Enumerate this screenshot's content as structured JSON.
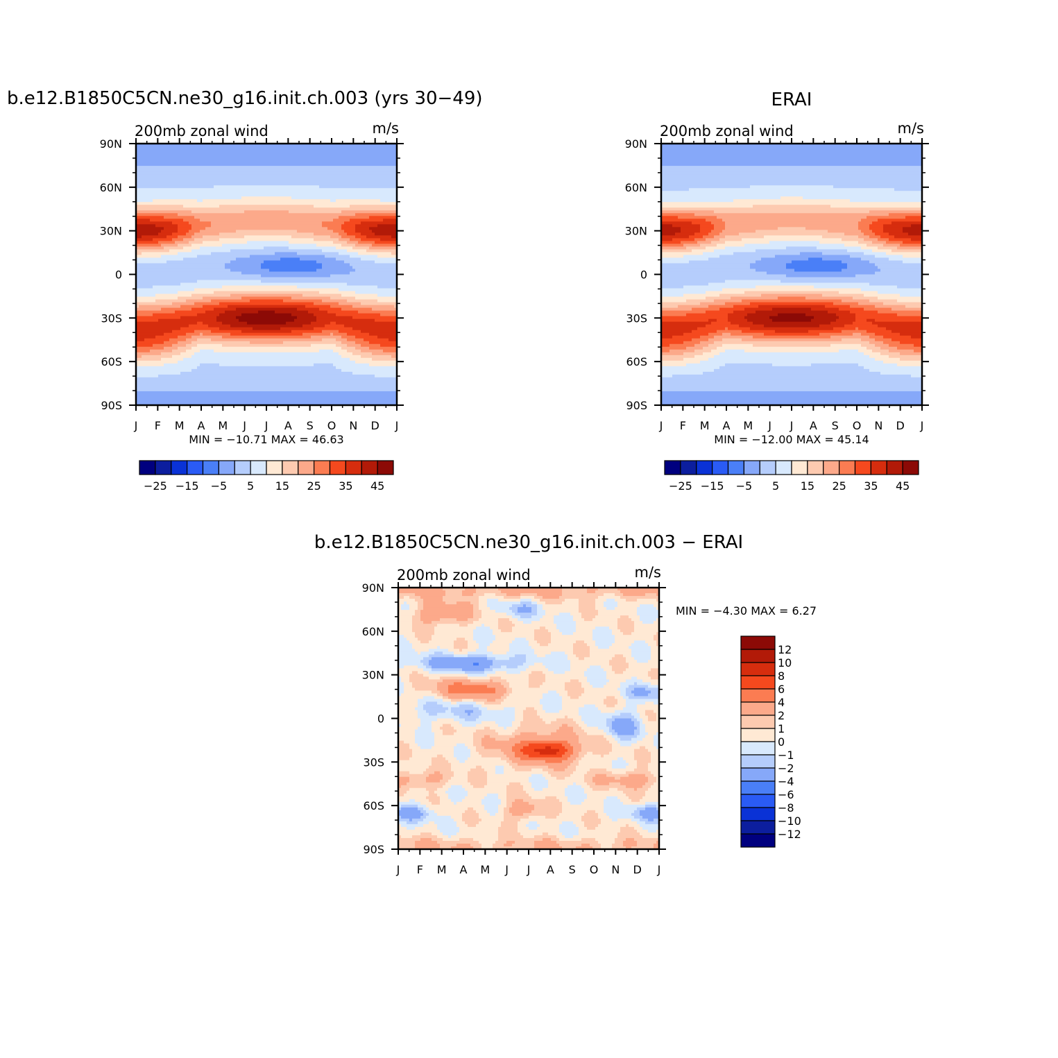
{
  "figure": {
    "panels": [
      {
        "title": "b.e12.B1850C5CN.ne30_g16.init.ch.003 (yrs 30−49)",
        "subtitle_left": "200mb  zonal  wind",
        "subtitle_right": "m/s",
        "stats": "MIN  =  −10.71  MAX  =    46.63"
      },
      {
        "title": "ERAI",
        "subtitle_left": "200mb  zonal  wind",
        "subtitle_right": "m/s",
        "stats": "MIN  =  −12.00  MAX  =    45.14"
      },
      {
        "title": "b.e12.B1850C5CN.ne30_g16.init.ch.003  −  ERAI",
        "subtitle_left": "200mb  zonal  wind",
        "subtitle_right": "m/s",
        "stats": "MIN  =    −4.30  MAX  =      6.27"
      }
    ]
  },
  "chart_data": [
    {
      "type": "heatmap",
      "x_tick_labels": [
        "J",
        "F",
        "M",
        "A",
        "M",
        "J",
        "J",
        "A",
        "S",
        "O",
        "N",
        "D",
        "J"
      ],
      "y_tick_labels": [
        "90N",
        "60N",
        "30N",
        "0",
        "30S",
        "60S",
        "90S"
      ],
      "ylim": [
        -90,
        90
      ],
      "colorbar_labels": [
        "−25",
        "−15",
        "−5",
        "5",
        "15",
        "25",
        "35",
        "45"
      ],
      "jets": [
        {
          "month": 1.2,
          "lat": 27,
          "max": 42
        },
        {
          "month": 6.5,
          "lat": -28,
          "max": 46.63
        },
        {
          "month": 11.8,
          "lat": 31,
          "max": 40
        },
        {
          "month": 7.2,
          "lat": 6,
          "min": -10.71
        }
      ]
    },
    {
      "type": "heatmap",
      "x_tick_labels": [
        "J",
        "F",
        "M",
        "A",
        "M",
        "J",
        "J",
        "A",
        "S",
        "O",
        "N",
        "D",
        "J"
      ],
      "y_tick_labels": [
        "90N",
        "60N",
        "30N",
        "0",
        "30S",
        "60S",
        "90S"
      ],
      "ylim": [
        -90,
        90
      ],
      "colorbar_labels": [
        "−25",
        "−15",
        "−5",
        "5",
        "15",
        "25",
        "35",
        "45"
      ],
      "jets": [
        {
          "month": 1.0,
          "lat": 29,
          "max": 45.14
        },
        {
          "month": 6.5,
          "lat": -29,
          "max": 42
        },
        {
          "month": 12.0,
          "lat": 31,
          "max": 38
        },
        {
          "month": 7.2,
          "lat": 6,
          "min": -12.0
        }
      ]
    },
    {
      "type": "heatmap",
      "x_tick_labels": [
        "J",
        "F",
        "M",
        "A",
        "M",
        "J",
        "J",
        "A",
        "S",
        "O",
        "N",
        "D",
        "J"
      ],
      "y_tick_labels": [
        "90N",
        "60N",
        "30N",
        "0",
        "30S",
        "60S",
        "90S"
      ],
      "ylim": [
        -90,
        90
      ],
      "colorbar_labels": [
        "12",
        "10",
        "8",
        "6",
        "4",
        "2",
        "1",
        "0",
        "−1",
        "−2",
        "−4",
        "−6",
        "−8",
        "−10",
        "−12"
      ],
      "anomalies": [
        {
          "month": 3.3,
          "lat": 20,
          "value": 5
        },
        {
          "month": 6.9,
          "lat": -22,
          "value": 6.27
        },
        {
          "month": 3.5,
          "lat": 38,
          "value": -4.3
        },
        {
          "month": 2.0,
          "lat": 72,
          "value": 3
        }
      ]
    }
  ],
  "colors": {
    "model_ramp": [
      "#00007f",
      "#0c1e9e",
      "#0a32d6",
      "#2a5bf5",
      "#4a7ff7",
      "#86a8f9",
      "#b5cdfc",
      "#d8e9fd",
      "#ffe9d4",
      "#fdcab0",
      "#fca98a",
      "#fb7c52",
      "#f5491e",
      "#d62d0e",
      "#b21a08",
      "#8c0a06"
    ],
    "diff_ramp": [
      "#8c0a06",
      "#b21a08",
      "#d62d0e",
      "#f5491e",
      "#fb7c52",
      "#fca98a",
      "#fdcab0",
      "#ffe9d4",
      "#d8e9fd",
      "#b5cdfc",
      "#86a8f9",
      "#4a7ff7",
      "#2a5bf5",
      "#0a32d6",
      "#0c1e9e",
      "#00007f"
    ]
  }
}
